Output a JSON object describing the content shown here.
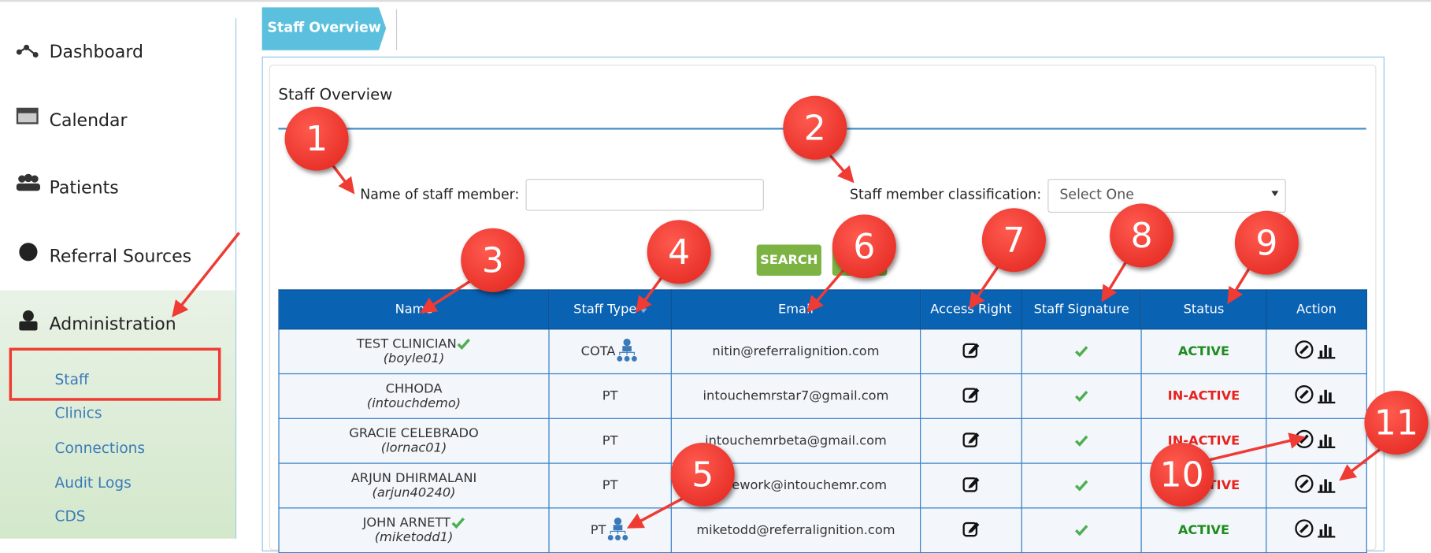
{
  "sidebar": {
    "items": [
      "Dashboard",
      "Calendar",
      "Patients",
      "Referral Sources",
      "Administration"
    ],
    "subitems": [
      "Staff",
      "Clinics",
      "Connections",
      "Audit Logs",
      "CDS"
    ]
  },
  "breadcrumb": "Staff Overview",
  "panel": {
    "title": "Staff Overview",
    "name_label": "Name of staff member:",
    "classification_label": "Staff member classification:",
    "select_placeholder": "Select One",
    "search_button": "SEARCH"
  },
  "table": {
    "headers": [
      "Name",
      "Staff Type",
      "Email",
      "Access Right",
      "Staff Signature",
      "Status",
      "Action"
    ],
    "rows": [
      {
        "name": "TEST CLINICIAN",
        "verified": true,
        "username": "(boyle01)",
        "staff_type": "COTA",
        "hierarchy_icon": true,
        "email": "nitin@referralignition.com",
        "status": "ACTIVE",
        "status_color": "#1e8c1e"
      },
      {
        "name": "CHHODA",
        "verified": false,
        "username": "(intouchdemo)",
        "staff_type": "PT",
        "hierarchy_icon": false,
        "email": "intouchemrstar7@gmail.com",
        "status": "IN-ACTIVE",
        "status_color": "#e8231f"
      },
      {
        "name": "GRACIE CELEBRADO",
        "verified": false,
        "username": "(lornac01)",
        "staff_type": "PT",
        "hierarchy_icon": false,
        "email": "intouchemrbeta@gmail.com",
        "status": "IN-ACTIVE",
        "status_color": "#e8231f"
      },
      {
        "name": "ARJUN DHIRMALANI",
        "verified": false,
        "username": "(arjun40240)",
        "staff_type": "PT",
        "hierarchy_icon": false,
        "email": "boylework@intouchemr.com",
        "status": "IN-ACTIVE",
        "status_color": "#e8231f"
      },
      {
        "name": "JOHN ARNETT",
        "verified": true,
        "username": "(miketodd1)",
        "staff_type": "PT",
        "hierarchy_icon": true,
        "email": "miketodd@referralignition.com",
        "status": "ACTIVE",
        "status_color": "#1e8c1e"
      }
    ]
  },
  "callouts": [
    "1",
    "2",
    "3",
    "4",
    "5",
    "6",
    "7",
    "8",
    "9",
    "10",
    "11"
  ]
}
